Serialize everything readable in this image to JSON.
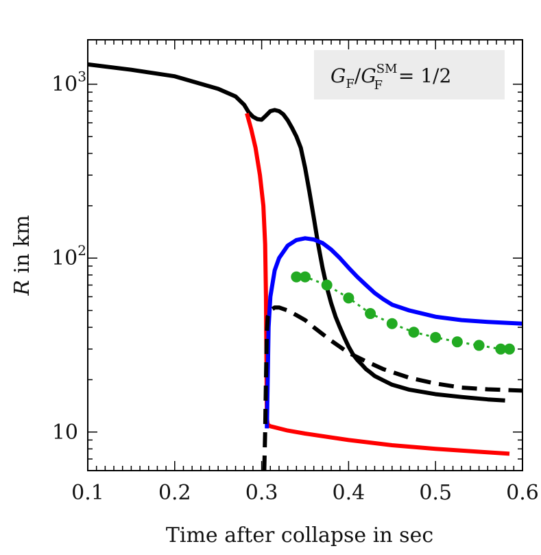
{
  "chart_data": {
    "type": "line",
    "title": "",
    "xlabel": "Time after collapse in sec",
    "ylabel": "R in km",
    "ylabel_italic_part": "R",
    "ylabel_rest": " in km",
    "xlim": [
      0.1,
      0.6
    ],
    "ylim": [
      6,
      1800
    ],
    "y_scale": "log",
    "grid": false,
    "x_ticks": [
      0.1,
      0.2,
      0.3,
      0.4,
      0.5,
      0.6
    ],
    "x_tick_labels": [
      "0.1",
      "0.2",
      "0.3",
      "0.4",
      "0.5",
      "0.6"
    ],
    "y_ticks": [
      10,
      100,
      1000
    ],
    "y_tick_labels": [
      "10",
      "10",
      "10"
    ],
    "y_tick_superscripts": [
      "",
      "2",
      "3"
    ],
    "annotation": {
      "text_G": "G",
      "sub_F": "F",
      "slash": "/",
      "text_G2": "G",
      "sup_SM": "SM",
      "sub_F2": "F",
      "rhs": " = 1/2",
      "position": "top-right",
      "background": "#ececec"
    },
    "series": [
      {
        "color": "#000000",
        "style": "solid",
        "x": [
          0.1,
          0.15,
          0.2,
          0.25,
          0.27,
          0.28,
          0.285,
          0.29,
          0.295,
          0.3,
          0.305,
          0.31,
          0.315,
          0.32,
          0.325,
          0.33,
          0.335,
          0.34,
          0.345,
          0.35,
          0.355,
          0.36,
          0.365,
          0.37,
          0.375,
          0.38,
          0.385,
          0.39,
          0.395,
          0.4,
          0.405,
          0.41,
          0.415,
          0.42,
          0.425,
          0.43,
          0.44,
          0.45,
          0.47,
          0.5,
          0.53,
          0.56,
          0.58
        ],
        "y": [
          1300,
          1210,
          1110,
          940,
          850,
          760,
          690,
          650,
          630,
          625,
          660,
          700,
          710,
          700,
          670,
          620,
          560,
          500,
          430,
          330,
          240,
          170,
          120,
          88,
          68,
          55,
          46,
          40,
          35,
          31,
          28,
          26,
          24.5,
          23,
          22,
          21,
          19.8,
          18.7,
          17.5,
          16.5,
          15.9,
          15.4,
          15.2
        ]
      },
      {
        "color": "#ff0000",
        "style": "solid",
        "x": [
          0.283,
          0.288,
          0.293,
          0.298,
          0.302,
          0.304,
          0.305,
          0.3055,
          0.306,
          0.307,
          0.31,
          0.33,
          0.35,
          0.4,
          0.45,
          0.5,
          0.55,
          0.585
        ],
        "y": [
          680,
          550,
          430,
          300,
          200,
          120,
          60,
          25,
          12,
          11,
          10.8,
          10.2,
          9.8,
          9.0,
          8.4,
          8.0,
          7.7,
          7.5
        ]
      },
      {
        "color": "#0000ff",
        "style": "solid",
        "x": [
          0.306,
          0.308,
          0.31,
          0.315,
          0.32,
          0.33,
          0.34,
          0.35,
          0.36,
          0.37,
          0.38,
          0.39,
          0.4,
          0.41,
          0.42,
          0.43,
          0.44,
          0.45,
          0.47,
          0.5,
          0.53,
          0.56,
          0.6
        ],
        "y": [
          10.5,
          40,
          60,
          85,
          100,
          118,
          127,
          130,
          128,
          122,
          112,
          100,
          88,
          78,
          70,
          63,
          58,
          54,
          50,
          46,
          44,
          43,
          42
        ]
      },
      {
        "color": "#22aa22",
        "style": "dotted-markers",
        "x": [
          0.34,
          0.35,
          0.375,
          0.4,
          0.425,
          0.45,
          0.475,
          0.5,
          0.525,
          0.55,
          0.575,
          0.585
        ],
        "y": [
          78,
          78,
          70,
          59,
          48,
          42,
          37.5,
          35,
          33,
          31.5,
          30,
          30
        ]
      },
      {
        "color": "#000000",
        "style": "dashed",
        "x": [
          0.303,
          0.304,
          0.305,
          0.306,
          0.307,
          0.31,
          0.315,
          0.32,
          0.33,
          0.34,
          0.35,
          0.36,
          0.38,
          0.4,
          0.42,
          0.44,
          0.47,
          0.5,
          0.53,
          0.56,
          0.6
        ],
        "y": [
          6,
          10,
          20,
          38,
          46,
          50,
          52,
          52,
          50,
          47,
          44,
          40,
          33.5,
          28.5,
          25.5,
          23,
          20.5,
          19,
          18,
          17.6,
          17.3
        ]
      }
    ]
  }
}
